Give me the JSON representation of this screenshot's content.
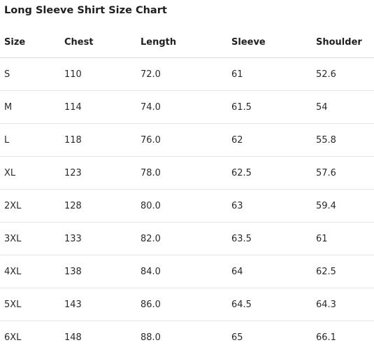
{
  "title": "Long Sleeve Shirt Size Chart",
  "table": {
    "headers": [
      "Size",
      "Chest",
      "Length",
      "Sleeve",
      "Shoulder"
    ],
    "rows": [
      [
        "S",
        "110",
        "72.0",
        "61",
        "52.6"
      ],
      [
        "M",
        "114",
        "74.0",
        "61.5",
        "54"
      ],
      [
        "L",
        "118",
        "76.0",
        "62",
        "55.8"
      ],
      [
        "XL",
        "123",
        "78.0",
        "62.5",
        "57.6"
      ],
      [
        "2XL",
        "128",
        "80.0",
        "63",
        "59.4"
      ],
      [
        "3XL",
        "133",
        "82.0",
        "63.5",
        "61"
      ],
      [
        "4XL",
        "138",
        "84.0",
        "64",
        "62.5"
      ],
      [
        "5XL",
        "143",
        "86.0",
        "64.5",
        "64.3"
      ],
      [
        "6XL",
        "148",
        "88.0",
        "65",
        "66.1"
      ]
    ]
  }
}
